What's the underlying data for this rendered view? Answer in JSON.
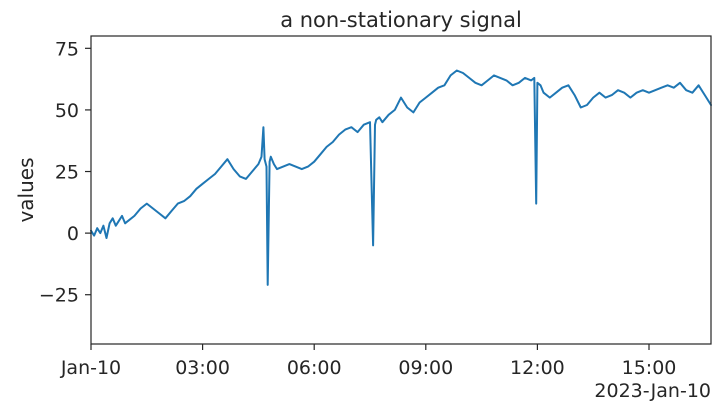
{
  "chart_data": {
    "type": "line",
    "title": "a non-stationary signal",
    "ylabel": "values",
    "xlabel": "",
    "x_offset_label": "2023-Jan-10",
    "x_range": [
      "2023-01-10T00:00",
      "2023-01-10T16:40"
    ],
    "ylim": [
      -45,
      80
    ],
    "x_ticks": [
      {
        "value": "2023-01-10T00:00",
        "label": "Jan-10"
      },
      {
        "value": "2023-01-10T03:00",
        "label": "03:00"
      },
      {
        "value": "2023-01-10T06:00",
        "label": "06:00"
      },
      {
        "value": "2023-01-10T09:00",
        "label": "09:00"
      },
      {
        "value": "2023-01-10T12:00",
        "label": "12:00"
      },
      {
        "value": "2023-01-10T15:00",
        "label": "15:00"
      }
    ],
    "y_ticks": [
      {
        "value": -25,
        "label": "−25"
      },
      {
        "value": 0,
        "label": "0"
      },
      {
        "value": 25,
        "label": "25"
      },
      {
        "value": 50,
        "label": "50"
      },
      {
        "value": 75,
        "label": "75"
      }
    ],
    "grid": false,
    "line_color": "#1f77b4",
    "series": [
      {
        "x": [
          "2023-01-10T00:00",
          "2023-01-10T00:05",
          "2023-01-10T00:10",
          "2023-01-10T00:15",
          "2023-01-10T00:20",
          "2023-01-10T00:25",
          "2023-01-10T00:30",
          "2023-01-10T00:35",
          "2023-01-10T00:40",
          "2023-01-10T00:45",
          "2023-01-10T00:50",
          "2023-01-10T00:55",
          "2023-01-10T01:00",
          "2023-01-10T01:10",
          "2023-01-10T01:20",
          "2023-01-10T01:30",
          "2023-01-10T01:40",
          "2023-01-10T01:50",
          "2023-01-10T02:00",
          "2023-01-10T02:10",
          "2023-01-10T02:20",
          "2023-01-10T02:30",
          "2023-01-10T02:40",
          "2023-01-10T02:50",
          "2023-01-10T03:00",
          "2023-01-10T03:10",
          "2023-01-10T03:20",
          "2023-01-10T03:30",
          "2023-01-10T03:40",
          "2023-01-10T03:50",
          "2023-01-10T04:00",
          "2023-01-10T04:10",
          "2023-01-10T04:20",
          "2023-01-10T04:30",
          "2023-01-10T04:35",
          "2023-01-10T04:38",
          "2023-01-10T04:40",
          "2023-01-10T04:43",
          "2023-01-10T04:45",
          "2023-01-10T04:48",
          "2023-01-10T04:50",
          "2023-01-10T04:55",
          "2023-01-10T05:00",
          "2023-01-10T05:10",
          "2023-01-10T05:20",
          "2023-01-10T05:30",
          "2023-01-10T05:40",
          "2023-01-10T05:50",
          "2023-01-10T06:00",
          "2023-01-10T06:10",
          "2023-01-10T06:20",
          "2023-01-10T06:30",
          "2023-01-10T06:40",
          "2023-01-10T06:50",
          "2023-01-10T07:00",
          "2023-01-10T07:10",
          "2023-01-10T07:20",
          "2023-01-10T07:30",
          "2023-01-10T07:35",
          "2023-01-10T07:38",
          "2023-01-10T07:40",
          "2023-01-10T07:45",
          "2023-01-10T07:50",
          "2023-01-10T08:00",
          "2023-01-10T08:10",
          "2023-01-10T08:20",
          "2023-01-10T08:30",
          "2023-01-10T08:40",
          "2023-01-10T08:50",
          "2023-01-10T09:00",
          "2023-01-10T09:10",
          "2023-01-10T09:20",
          "2023-01-10T09:30",
          "2023-01-10T09:40",
          "2023-01-10T09:50",
          "2023-01-10T10:00",
          "2023-01-10T10:10",
          "2023-01-10T10:20",
          "2023-01-10T10:30",
          "2023-01-10T10:40",
          "2023-01-10T10:50",
          "2023-01-10T11:00",
          "2023-01-10T11:10",
          "2023-01-10T11:20",
          "2023-01-10T11:30",
          "2023-01-10T11:40",
          "2023-01-10T11:50",
          "2023-01-10T11:55",
          "2023-01-10T11:58",
          "2023-01-10T12:00",
          "2023-01-10T12:05",
          "2023-01-10T12:10",
          "2023-01-10T12:20",
          "2023-01-10T12:30",
          "2023-01-10T12:40",
          "2023-01-10T12:50",
          "2023-01-10T13:00",
          "2023-01-10T13:10",
          "2023-01-10T13:20",
          "2023-01-10T13:30",
          "2023-01-10T13:40",
          "2023-01-10T13:50",
          "2023-01-10T14:00",
          "2023-01-10T14:10",
          "2023-01-10T14:20",
          "2023-01-10T14:30",
          "2023-01-10T14:40",
          "2023-01-10T14:50",
          "2023-01-10T15:00",
          "2023-01-10T15:10",
          "2023-01-10T15:20",
          "2023-01-10T15:30",
          "2023-01-10T15:40",
          "2023-01-10T15:50",
          "2023-01-10T16:00",
          "2023-01-10T16:10",
          "2023-01-10T16:20",
          "2023-01-10T16:30",
          "2023-01-10T16:40"
        ],
        "y": [
          1,
          -1,
          2,
          0,
          3,
          -2,
          4,
          6,
          3,
          5,
          7,
          4,
          5,
          7,
          10,
          12,
          10,
          8,
          6,
          9,
          12,
          13,
          15,
          18,
          20,
          22,
          24,
          27,
          30,
          26,
          23,
          22,
          25,
          28,
          31,
          43,
          30,
          27,
          -21,
          29,
          31,
          28,
          26,
          27,
          28,
          27,
          26,
          27,
          29,
          32,
          35,
          37,
          40,
          42,
          43,
          41,
          44,
          45,
          -5,
          44,
          46,
          47,
          45,
          48,
          50,
          55,
          51,
          49,
          53,
          55,
          57,
          59,
          60,
          64,
          66,
          65,
          63,
          61,
          60,
          62,
          64,
          63,
          62,
          60,
          61,
          63,
          62,
          63,
          12,
          61,
          60,
          57,
          55,
          57,
          59,
          60,
          56,
          51,
          52,
          55,
          57,
          55,
          56,
          58,
          57,
          55,
          57,
          58,
          57,
          58,
          59,
          60,
          59,
          61,
          58,
          57,
          60,
          56,
          52
        ]
      }
    ]
  }
}
